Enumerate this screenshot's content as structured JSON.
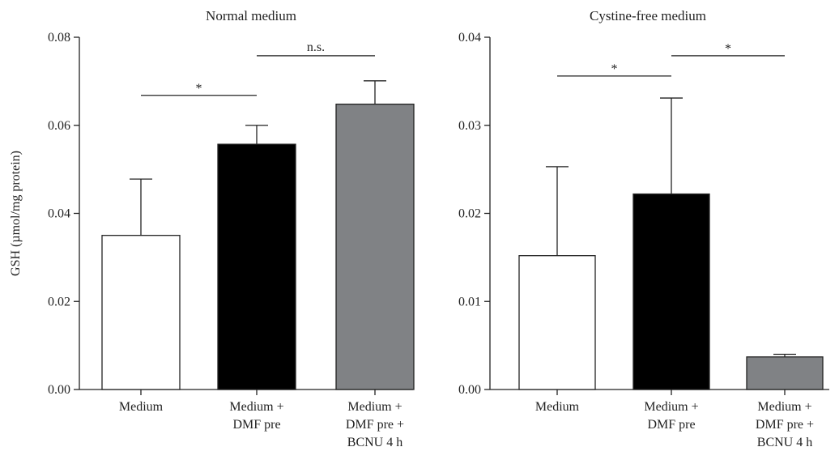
{
  "chart_data": [
    {
      "type": "bar",
      "title": "Normal medium",
      "ylabel": "GSH (µmol/mg protein)",
      "xlabel": "",
      "ylim": [
        0,
        0.08
      ],
      "yticks": [
        "0.00",
        "0.02",
        "0.04",
        "0.06",
        "0.08"
      ],
      "categories": [
        [
          "Medium"
        ],
        [
          "Medium +",
          "DMF pre"
        ],
        [
          "Medium +",
          "DMF pre +",
          "BCNU 4 h"
        ]
      ],
      "values": [
        0.035,
        0.0557,
        0.0648
      ],
      "errors": [
        0.0128,
        0.0043,
        0.0053
      ],
      "colors": [
        "#ffffff",
        "#000000",
        "#808285"
      ],
      "significance": [
        {
          "from": 0,
          "to": 1,
          "label": "*",
          "y": 0.0668
        },
        {
          "from": 1,
          "to": 2,
          "label": "n.s.",
          "y": 0.0758
        }
      ]
    },
    {
      "type": "bar",
      "title": "Cystine-free medium",
      "ylabel": "",
      "xlabel": "",
      "ylim": [
        0,
        0.04
      ],
      "yticks": [
        "0.00",
        "0.01",
        "0.02",
        "0.03",
        "0.04"
      ],
      "categories": [
        [
          "Medium"
        ],
        [
          "Medium +",
          "DMF pre"
        ],
        [
          "Medium +",
          "DMF pre +",
          "BCNU 4 h"
        ]
      ],
      "values": [
        0.0152,
        0.0222,
        0.0037
      ],
      "errors": [
        0.0101,
        0.0109,
        0.0003
      ],
      "colors": [
        "#ffffff",
        "#000000",
        "#808285"
      ],
      "significance": [
        {
          "from": 0,
          "to": 1,
          "label": "*",
          "y": 0.0356
        },
        {
          "from": 1,
          "to": 2,
          "label": "*",
          "y": 0.0379
        }
      ]
    }
  ]
}
